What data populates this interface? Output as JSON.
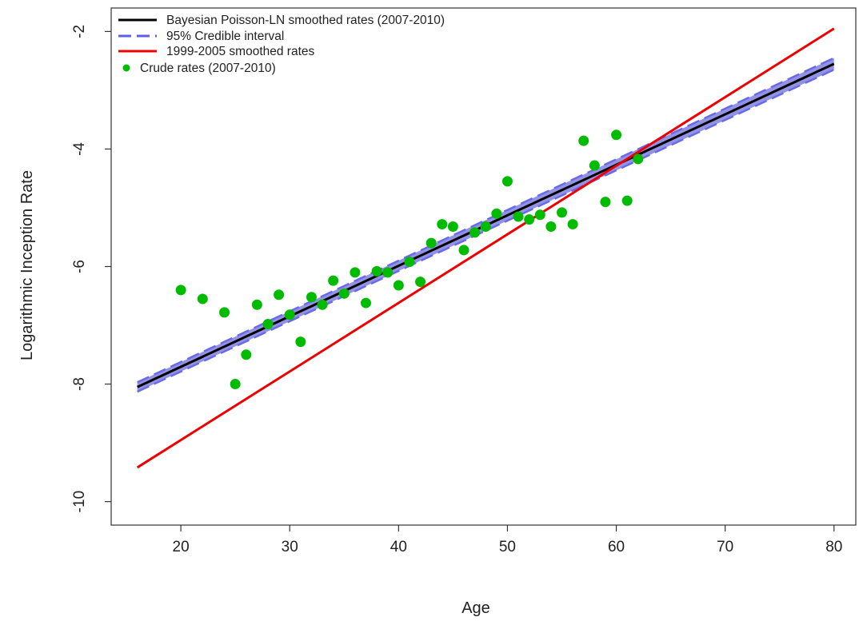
{
  "chart_data": {
    "type": "line",
    "xlabel": "Age",
    "ylabel": "Logarithmic Inception Rate",
    "xlim": [
      13.6,
      82
    ],
    "ylim": [
      -10.4,
      -1.6
    ],
    "x_ticks": [
      20,
      30,
      40,
      50,
      60,
      70,
      80
    ],
    "y_ticks": [
      -10,
      -8,
      -6,
      -4,
      -2
    ],
    "legend_position": "top-left",
    "grid": false,
    "series": [
      {
        "name": "Bayesian Poisson-LN smoothed rates (2007-2010)",
        "kind": "line",
        "color": "#000000",
        "x": [
          16,
          80
        ],
        "y": [
          -8.05,
          -2.55
        ]
      },
      {
        "name": "95% Credible interval",
        "kind": "band",
        "color": "#4444dd",
        "x": [
          16,
          80
        ],
        "y_lower": [
          -8.13,
          -2.65
        ],
        "y_upper": [
          -7.97,
          -2.45
        ]
      },
      {
        "name": "1999-2005 smoothed rates",
        "kind": "line",
        "color": "#ee0000",
        "x": [
          16,
          80
        ],
        "y": [
          -9.42,
          -1.95
        ]
      },
      {
        "name": "Crude rates (2007-2010)",
        "kind": "scatter",
        "color": "#00bb00",
        "x": [
          20,
          22,
          24,
          25,
          26,
          27,
          28,
          29,
          30,
          31,
          32,
          33,
          34,
          35,
          36,
          37,
          38,
          39,
          40,
          41,
          42,
          43,
          44,
          45,
          46,
          47,
          48,
          49,
          50,
          51,
          52,
          53,
          54,
          55,
          56,
          57,
          58,
          59,
          60,
          61,
          62
        ],
        "y": [
          -6.4,
          -6.55,
          -6.78,
          -8.0,
          -7.5,
          -6.65,
          -6.98,
          -6.48,
          -6.82,
          -7.28,
          -6.52,
          -6.65,
          -6.24,
          -6.46,
          -6.1,
          -6.62,
          -6.08,
          -6.1,
          -6.32,
          -5.92,
          -6.26,
          -5.6,
          -5.28,
          -5.32,
          -5.72,
          -5.42,
          -5.32,
          -5.1,
          -4.55,
          -5.15,
          -5.2,
          -5.12,
          -5.32,
          -5.08,
          -5.28,
          -3.86,
          -4.28,
          -4.9,
          -3.76,
          -4.88,
          -4.17
        ]
      }
    ]
  }
}
